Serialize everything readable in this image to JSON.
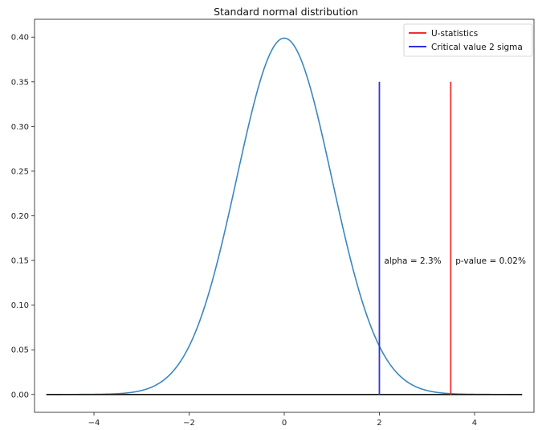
{
  "chart_data": {
    "type": "line",
    "title": "Standard normal distribution",
    "xlabel": "",
    "ylabel": "",
    "xlim": [
      -5.25,
      5.25
    ],
    "ylim": [
      -0.02,
      0.42
    ],
    "xticks": [
      -4,
      -2,
      0,
      2,
      4
    ],
    "xtick_labels": [
      "−4",
      "−2",
      "0",
      "2",
      "4"
    ],
    "yticks": [
      0.0,
      0.05,
      0.1,
      0.15,
      0.2,
      0.25,
      0.3,
      0.35,
      0.4
    ],
    "ytick_labels": [
      "0.00",
      "0.05",
      "0.10",
      "0.15",
      "0.20",
      "0.25",
      "0.30",
      "0.35",
      "0.40"
    ],
    "grid": false,
    "legend_position": "top-right",
    "colors": {
      "curve": "#3a87c0",
      "baseline": "#111111",
      "u_stat": "#f03030",
      "critical": "#3030e0"
    },
    "series": [
      {
        "kind": "curve",
        "function": "standard-normal-pdf",
        "x_range": [
          -5,
          5
        ],
        "peak": 0.399
      },
      {
        "kind": "baseline",
        "x": [
          -5,
          5
        ],
        "y": [
          0,
          0
        ]
      },
      {
        "kind": "vline",
        "name": "U-statistics",
        "x": 3.5,
        "y": [
          0,
          0.35
        ]
      },
      {
        "kind": "vline",
        "name": "Critical value 2 sigma",
        "x": 2,
        "y": [
          0,
          0.35
        ]
      }
    ],
    "legend": [
      {
        "label": "U-statistics",
        "color": "#f03030"
      },
      {
        "label": "Critical value 2 sigma",
        "color": "#3030e0"
      }
    ],
    "annotations": [
      {
        "text": "alpha = 2.3%",
        "x": 2.1,
        "y": 0.15
      },
      {
        "text": "p-value = 0.02%",
        "x": 3.6,
        "y": 0.15
      }
    ]
  }
}
